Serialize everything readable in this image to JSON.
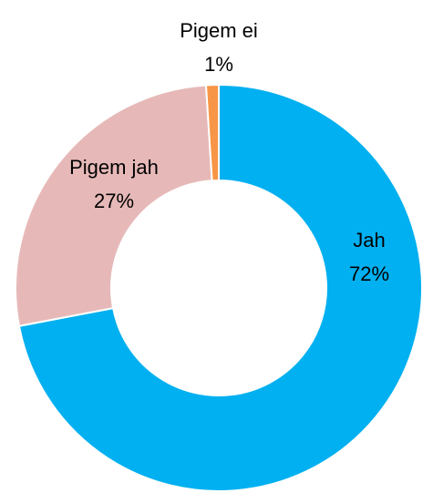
{
  "chart_data": {
    "type": "donut",
    "categories": [
      "Jah",
      "Pigem jah",
      "Pigem ei"
    ],
    "values": [
      72,
      27,
      1
    ],
    "value_labels": [
      "72%",
      "27%",
      "1%"
    ],
    "colors": [
      "#00b0f0",
      "#e6b9b8",
      "#f79646"
    ]
  }
}
